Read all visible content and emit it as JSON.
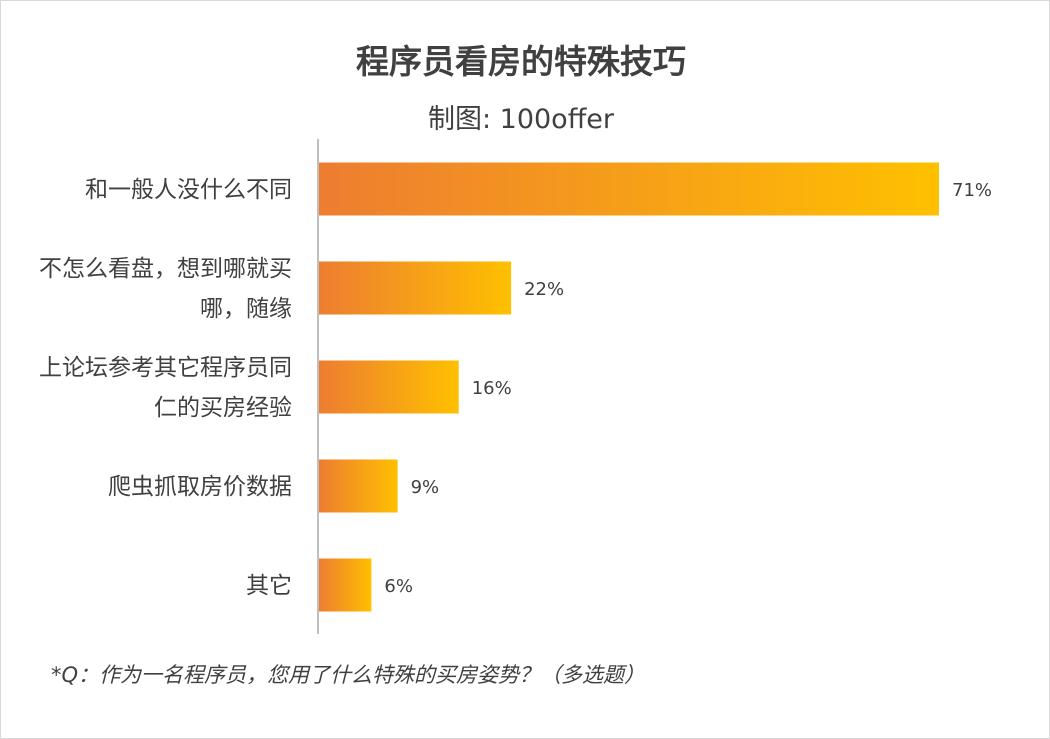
{
  "chart_data": {
    "type": "bar",
    "orientation": "horizontal",
    "title": "程序员看房的特殊技巧",
    "subtitle": "制图: 100offer",
    "categories": [
      [
        "和一般人没什么不同"
      ],
      [
        "不怎么看盘，想到哪就买",
        "哪，随缘"
      ],
      [
        "上论坛参考其它程序员同",
        "仁的买房经验"
      ],
      [
        "爬虫抓取房价数据"
      ],
      [
        "其它"
      ]
    ],
    "values": [
      71,
      22,
      16,
      9,
      6
    ],
    "value_labels": [
      "71%",
      "22%",
      "16%",
      "9%",
      "6%"
    ],
    "xlim": [
      0,
      71
    ],
    "gradient": {
      "start": "#ED7D31",
      "end": "#FFC000"
    },
    "axis_color": "#bfbfbf",
    "footnote": "*Q：作为一名程序员，您用了什么特殊的买房姿势？（多选题）"
  }
}
